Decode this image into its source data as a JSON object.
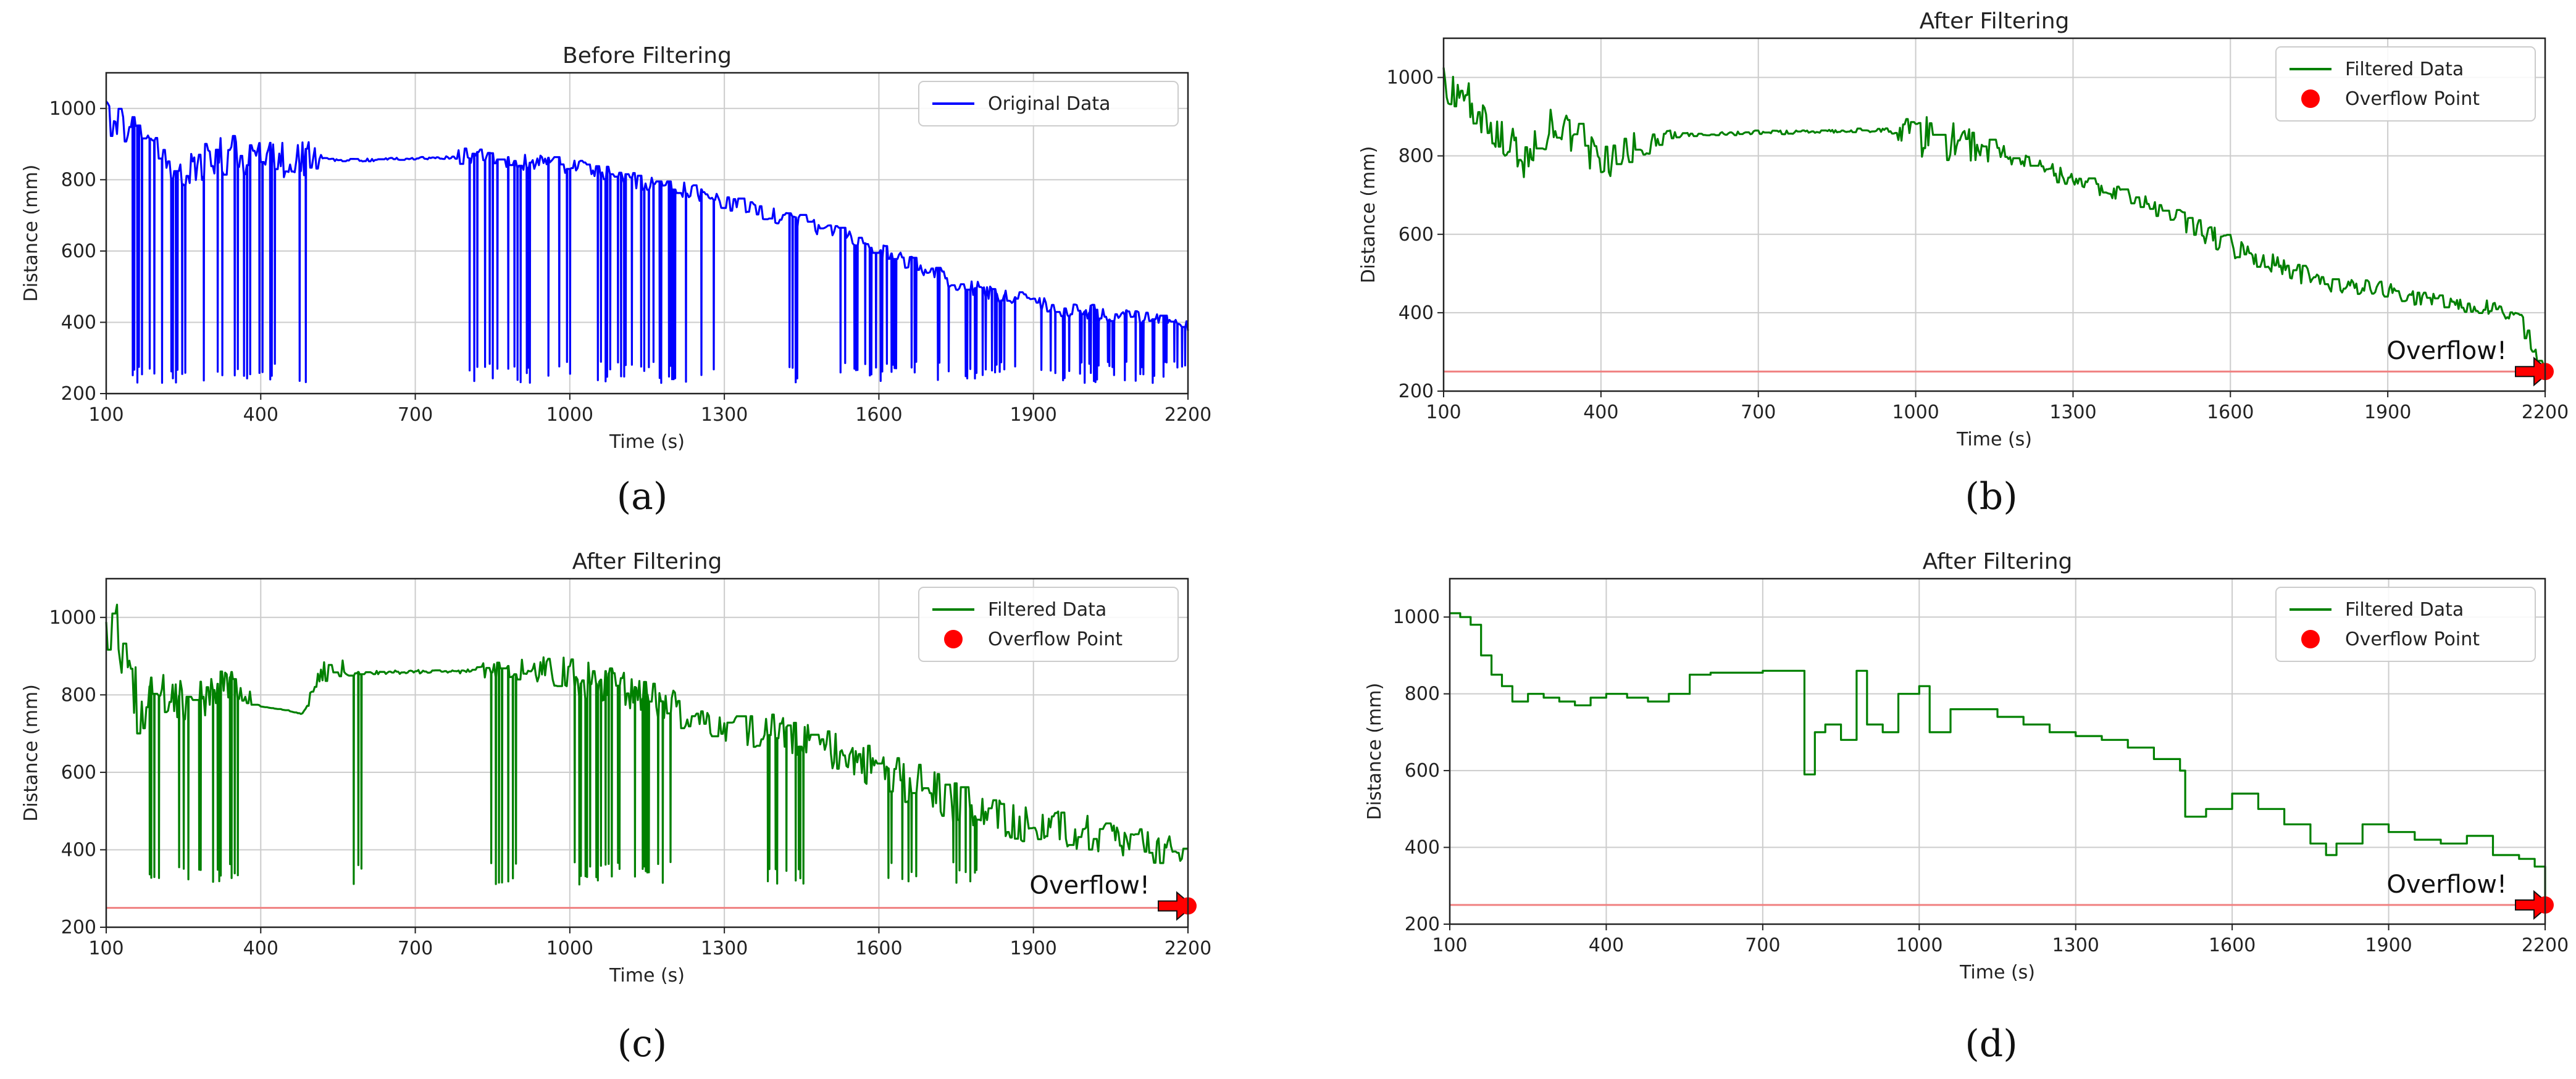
{
  "colors": {
    "original": "#0000ff",
    "filtered": "#008000",
    "threshold": "#f08080",
    "overflow": "#ff0000",
    "grid": "#cccccc"
  },
  "chart_data": [
    {
      "panel": "a",
      "caption": "(a)",
      "type": "line",
      "title": "Before Filtering",
      "xlabel": "Time (s)",
      "ylabel": "Distance (mm)",
      "xlim": [
        100,
        2200
      ],
      "ylim": [
        200,
        1100
      ],
      "xticks": [
        100,
        400,
        700,
        1000,
        1300,
        1600,
        1900,
        2200
      ],
      "yticks": [
        200,
        400,
        600,
        800,
        1000
      ],
      "grid": true,
      "legend_position": "top-right",
      "series": [
        {
          "name": "Original Data",
          "color": "#0000ff",
          "style": "noisy-dropouts",
          "x": [
            100,
            130,
            160,
            190,
            220,
            250,
            300,
            350,
            400,
            450,
            500,
            550,
            600,
            650,
            700,
            750,
            780,
            800,
            850,
            900,
            950,
            1000,
            1050,
            1100,
            1150,
            1200,
            1250,
            1300,
            1350,
            1400,
            1450,
            1500,
            1550,
            1600,
            1650,
            1700,
            1750,
            1800,
            1850,
            1900,
            1950,
            2000,
            2050,
            2100,
            2150,
            2200
          ],
          "y": [
            980,
            950,
            920,
            900,
            850,
            820,
            860,
            870,
            870,
            860,
            865,
            855,
            855,
            858,
            860,
            862,
            862,
            870,
            860,
            850,
            845,
            840,
            820,
            810,
            790,
            780,
            760,
            740,
            720,
            700,
            680,
            660,
            630,
            600,
            570,
            540,
            510,
            490,
            470,
            465,
            440,
            430,
            420,
            410,
            400,
            390
          ],
          "dropout_value": 250,
          "dropout_regions": [
            [
              140,
              500
            ],
            [
              780,
              1000
            ],
            [
              1050,
              1300
            ],
            [
              1420,
              1460
            ],
            [
              1520,
              2200
            ]
          ]
        }
      ],
      "threshold": null,
      "overflow": null
    },
    {
      "panel": "b",
      "caption": "(b)",
      "type": "line",
      "title": "After Filtering",
      "xlabel": "Time (s)",
      "ylabel": "Distance (mm)",
      "xlim": [
        100,
        2200
      ],
      "ylim": [
        200,
        1100
      ],
      "xticks": [
        100,
        400,
        700,
        1000,
        1300,
        1600,
        1900,
        2200
      ],
      "yticks": [
        200,
        400,
        600,
        800,
        1000
      ],
      "grid": true,
      "legend_position": "top-right",
      "series": [
        {
          "name": "Filtered Data",
          "color": "#008000",
          "style": "noisy",
          "x": [
            100,
            130,
            160,
            200,
            250,
            300,
            350,
            400,
            450,
            500,
            550,
            600,
            650,
            700,
            750,
            800,
            850,
            900,
            950,
            1000,
            1050,
            1100,
            1150,
            1200,
            1250,
            1300,
            1350,
            1400,
            1450,
            1500,
            1550,
            1600,
            1650,
            1700,
            1750,
            1800,
            1850,
            1900,
            1950,
            2000,
            2050,
            2100,
            2150,
            2180,
            2200
          ],
          "y": [
            1000,
            960,
            900,
            850,
            800,
            880,
            860,
            770,
            820,
            840,
            855,
            855,
            857,
            860,
            860,
            862,
            864,
            865,
            866,
            860,
            840,
            830,
            810,
            780,
            760,
            740,
            720,
            700,
            670,
            640,
            600,
            570,
            540,
            520,
            490,
            470,
            465,
            460,
            440,
            430,
            420,
            410,
            390,
            300,
            250
          ],
          "noise": [
            120,
            120,
            150,
            150,
            120,
            100,
            100,
            90,
            90,
            70,
            10,
            10,
            10,
            10,
            10,
            10,
            10,
            10,
            10,
            120,
            100,
            90,
            60,
            50,
            50,
            40,
            40,
            40,
            40,
            50,
            60,
            60,
            50,
            50,
            50,
            40,
            40,
            40,
            40,
            40,
            40,
            40,
            40,
            60,
            20
          ]
        },
        {
          "name": "Overflow Point",
          "color": "#ff0000",
          "marker": "circle"
        }
      ],
      "threshold": 250,
      "overflow": {
        "x": 2200,
        "y": 250,
        "label": "Overflow!"
      }
    },
    {
      "panel": "c",
      "caption": "(c)",
      "type": "line",
      "title": "After Filtering",
      "xlabel": "Time (s)",
      "ylabel": "Distance (mm)",
      "xlim": [
        100,
        2200
      ],
      "ylim": [
        200,
        1100
      ],
      "xticks": [
        100,
        400,
        700,
        1000,
        1300,
        1600,
        1900,
        2200
      ],
      "yticks": [
        200,
        400,
        600,
        800,
        1000
      ],
      "grid": true,
      "legend_position": "top-right",
      "series": [
        {
          "name": "Filtered Data",
          "color": "#008000",
          "style": "noisy-dropouts",
          "x": [
            100,
            130,
            160,
            200,
            250,
            300,
            350,
            400,
            450,
            480,
            520,
            560,
            600,
            650,
            700,
            750,
            800,
            850,
            900,
            950,
            1000,
            1050,
            1100,
            1150,
            1200,
            1250,
            1300,
            1350,
            1400,
            1450,
            1500,
            1550,
            1600,
            1650,
            1700,
            1750,
            1800,
            1850,
            1900,
            1950,
            2000,
            2050,
            2100,
            2150,
            2200
          ],
          "y": [
            980,
            950,
            800,
            780,
            790,
            800,
            830,
            770,
            760,
            750,
            860,
            870,
            856,
            858,
            860,
            860,
            860,
            862,
            865,
            860,
            850,
            830,
            810,
            790,
            770,
            750,
            730,
            710,
            700,
            680,
            660,
            640,
            610,
            580,
            550,
            520,
            500,
            480,
            460,
            450,
            440,
            430,
            410,
            400,
            380
          ],
          "noise": [
            150,
            200,
            200,
            150,
            120,
            120,
            100,
            0,
            0,
            0,
            60,
            60,
            10,
            10,
            10,
            10,
            10,
            60,
            60,
            80,
            100,
            100,
            100,
            100,
            100,
            100,
            100,
            100,
            100,
            100,
            100,
            100,
            120,
            120,
            120,
            110,
            100,
            100,
            100,
            100,
            100,
            100,
            90,
            90,
            60
          ],
          "dropout_value": 330,
          "dropout_regions": [
            [
              180,
              380
            ],
            [
              560,
              600
            ],
            [
              820,
              900
            ],
            [
              1000,
              1200
            ],
            [
              1380,
              1460
            ],
            [
              1600,
              1800
            ]
          ]
        },
        {
          "name": "Overflow Point",
          "color": "#ff0000",
          "marker": "circle"
        }
      ],
      "threshold": 250,
      "overflow": {
        "x": 2200,
        "y": 255,
        "label": "Overflow!"
      }
    },
    {
      "panel": "d",
      "caption": "(d)",
      "type": "line",
      "title": "After Filtering",
      "xlabel": "Time (s)",
      "ylabel": "Distance (mm)",
      "xlim": [
        100,
        2200
      ],
      "ylim": [
        200,
        1100
      ],
      "xticks": [
        100,
        400,
        700,
        1000,
        1300,
        1600,
        1900,
        2200
      ],
      "yticks": [
        200,
        400,
        600,
        800,
        1000
      ],
      "grid": true,
      "legend_position": "top-right",
      "series": [
        {
          "name": "Filtered Data",
          "color": "#008000",
          "style": "step",
          "x": [
            100,
            120,
            140,
            160,
            180,
            200,
            220,
            250,
            280,
            310,
            340,
            370,
            400,
            440,
            480,
            520,
            560,
            600,
            700,
            770,
            780,
            800,
            820,
            850,
            880,
            900,
            930,
            960,
            1000,
            1020,
            1060,
            1100,
            1150,
            1200,
            1250,
            1300,
            1350,
            1400,
            1450,
            1500,
            1510,
            1550,
            1600,
            1650,
            1700,
            1750,
            1780,
            1800,
            1850,
            1900,
            1950,
            2000,
            2050,
            2100,
            2150,
            2180,
            2200
          ],
          "y": [
            1010,
            1000,
            980,
            900,
            850,
            820,
            780,
            800,
            790,
            780,
            770,
            790,
            800,
            790,
            780,
            800,
            850,
            855,
            860,
            860,
            590,
            700,
            720,
            680,
            860,
            720,
            700,
            800,
            820,
            700,
            760,
            760,
            740,
            720,
            700,
            690,
            680,
            660,
            630,
            600,
            480,
            500,
            540,
            500,
            460,
            410,
            380,
            410,
            460,
            440,
            420,
            410,
            430,
            380,
            370,
            350,
            250
          ]
        },
        {
          "name": "Overflow Point",
          "color": "#ff0000",
          "marker": "circle"
        }
      ],
      "threshold": 250,
      "overflow": {
        "x": 2200,
        "y": 250,
        "label": "Overflow!"
      }
    }
  ]
}
